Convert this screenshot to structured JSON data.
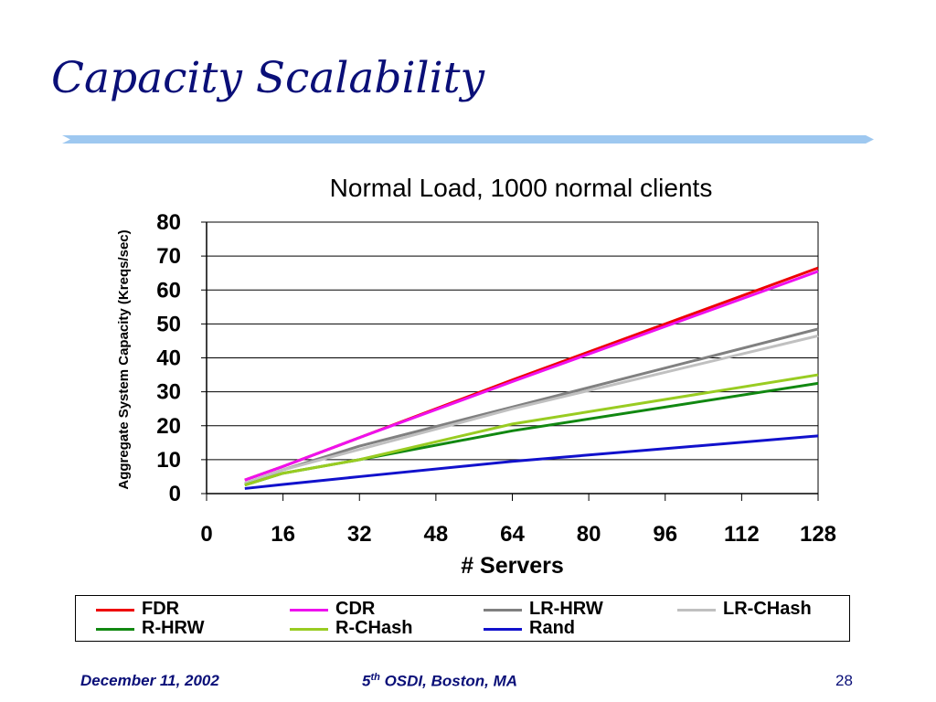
{
  "slide": {
    "title": "Capacity Scalability",
    "footer_date": "December 11, 2002",
    "footer_conf_num": "5",
    "footer_conf_sup": "th",
    "footer_conf_rest": " OSDI, Boston, MA",
    "page_number": "28"
  },
  "chart_data": {
    "type": "line",
    "title": "Normal Load, 1000 normal clients",
    "xlabel": "# Servers",
    "ylabel": "Aggregate System Capacity (Kreqs/sec)",
    "xlim": [
      0,
      128
    ],
    "ylim": [
      0,
      80
    ],
    "xticks": [
      0,
      16,
      32,
      48,
      64,
      80,
      96,
      112,
      128
    ],
    "yticks": [
      0,
      10,
      20,
      30,
      40,
      50,
      60,
      70,
      80
    ],
    "grid": "horizontal",
    "legend_position": "bottom",
    "series": [
      {
        "name": "FDR",
        "color": "#ee0000",
        "x": [
          8,
          16,
          32,
          64,
          128
        ],
        "y": [
          4,
          8,
          16.5,
          33.5,
          66.5
        ]
      },
      {
        "name": "CDR",
        "color": "#ee11ee",
        "x": [
          8,
          16,
          32,
          64,
          128
        ],
        "y": [
          4,
          8,
          16.5,
          33,
          65.5
        ]
      },
      {
        "name": "LR-HRW",
        "color": "#808080",
        "x": [
          8,
          16,
          32,
          64,
          128
        ],
        "y": [
          3,
          7,
          14,
          25.5,
          48.5
        ]
      },
      {
        "name": "LR-CHash",
        "color": "#c0c0c0",
        "x": [
          8,
          16,
          32,
          64,
          128
        ],
        "y": [
          3,
          7,
          13,
          25,
          46.5
        ]
      },
      {
        "name": "R-HRW",
        "color": "#118811",
        "x": [
          8,
          16,
          32,
          64,
          128
        ],
        "y": [
          2.5,
          6,
          10,
          18.5,
          32.5
        ]
      },
      {
        "name": "R-CHash",
        "color": "#99cc22",
        "x": [
          8,
          16,
          32,
          64,
          128
        ],
        "y": [
          2.5,
          6,
          10,
          20.5,
          35
        ]
      },
      {
        "name": "Rand",
        "color": "#1111cc",
        "x": [
          8,
          16,
          32,
          64,
          128
        ],
        "y": [
          1.5,
          2.7,
          5,
          9.5,
          17
        ]
      }
    ]
  }
}
